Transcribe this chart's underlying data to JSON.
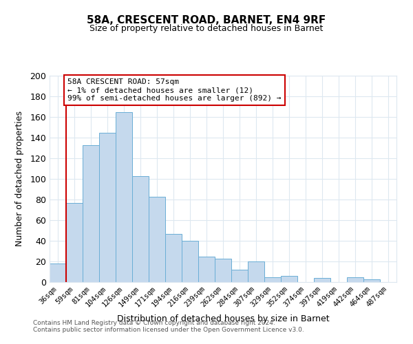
{
  "title": "58A, CRESCENT ROAD, BARNET, EN4 9RF",
  "subtitle": "Size of property relative to detached houses in Barnet",
  "xlabel": "Distribution of detached houses by size in Barnet",
  "ylabel": "Number of detached properties",
  "bar_labels": [
    "36sqm",
    "59sqm",
    "81sqm",
    "104sqm",
    "126sqm",
    "149sqm",
    "171sqm",
    "194sqm",
    "216sqm",
    "239sqm",
    "262sqm",
    "284sqm",
    "307sqm",
    "329sqm",
    "352sqm",
    "374sqm",
    "397sqm",
    "419sqm",
    "442sqm",
    "464sqm",
    "487sqm"
  ],
  "bar_values": [
    18,
    77,
    133,
    145,
    165,
    103,
    83,
    47,
    40,
    25,
    23,
    12,
    20,
    5,
    6,
    0,
    4,
    0,
    5,
    3,
    0
  ],
  "bar_color": "#c5d9ed",
  "bar_edge_color": "#6aaed6",
  "ylim": [
    0,
    200
  ],
  "yticks": [
    0,
    20,
    40,
    60,
    80,
    100,
    120,
    140,
    160,
    180,
    200
  ],
  "annotation_title": "58A CRESCENT ROAD: 57sqm",
  "annotation_line1": "← 1% of detached houses are smaller (12)",
  "annotation_line2": "99% of semi-detached houses are larger (892) →",
  "annotation_box_color": "#ffffff",
  "annotation_box_edge": "#cc0000",
  "property_line_color": "#cc0000",
  "footer1": "Contains HM Land Registry data © Crown copyright and database right 2024.",
  "footer2": "Contains public sector information licensed under the Open Government Licence v3.0.",
  "bg_color": "#ffffff",
  "grid_color": "#dde8f0"
}
